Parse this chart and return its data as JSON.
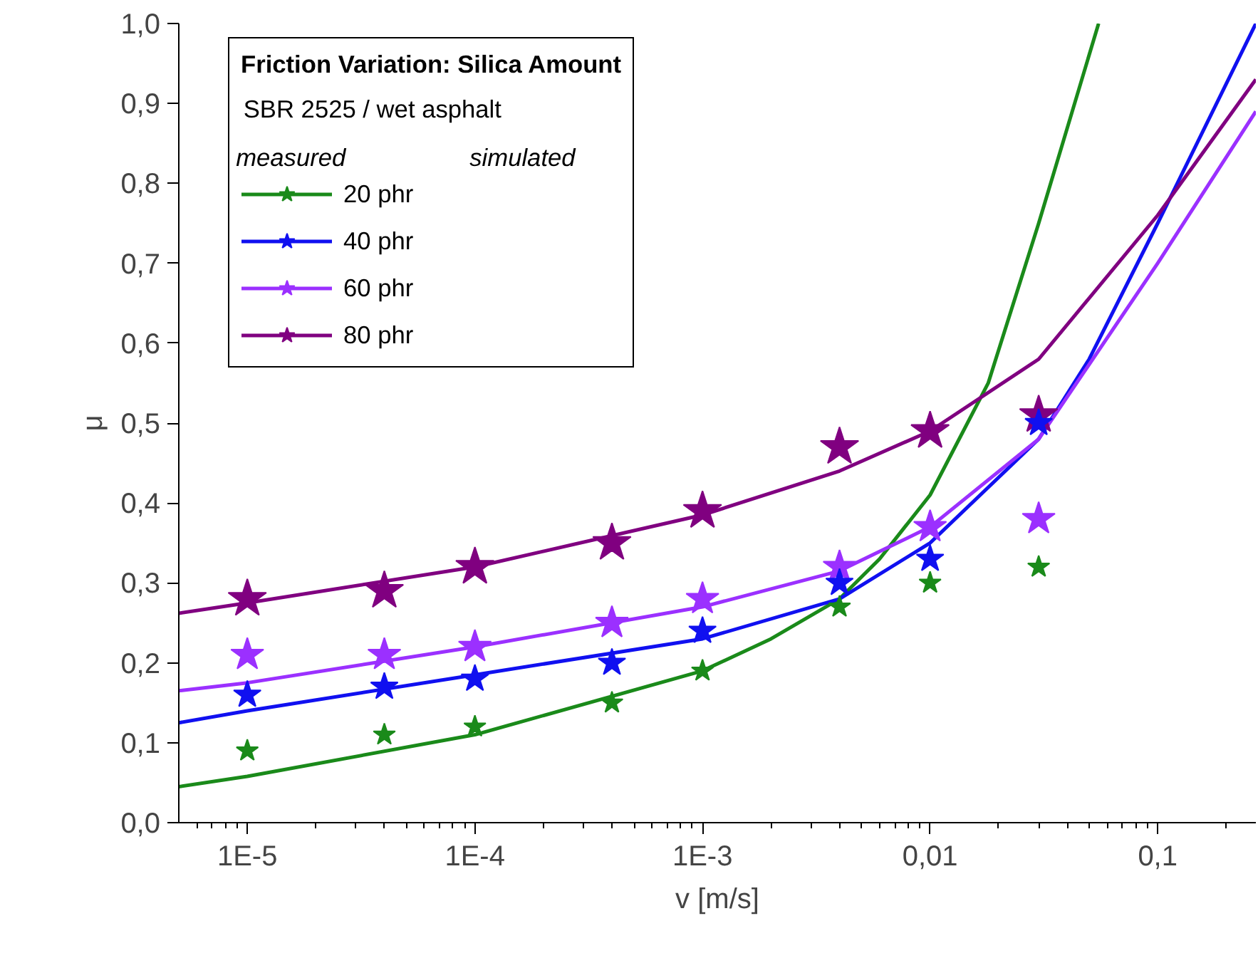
{
  "chart_data": {
    "type": "scatter",
    "legend_title": "Friction Variation: Silica Amount",
    "annotations": [
      "SBR 2525 / wet asphalt",
      "measured",
      "simulated"
    ],
    "xlabel": "v [m/s]",
    "ylabel": "μ",
    "log": "x",
    "grid": false,
    "legend": "top left",
    "marker": "star",
    "xlim": [
      5e-06,
      0.27
    ],
    "ylim": [
      0,
      1
    ],
    "xticks": [
      {
        "value": 1e-05,
        "label": "1E-5"
      },
      {
        "value": 0.0001,
        "label": "1E-4"
      },
      {
        "value": 0.001,
        "label": "1E-3"
      },
      {
        "value": 0.01,
        "label": "0,01"
      },
      {
        "value": 0.1,
        "label": "0,1"
      }
    ],
    "yticks": [
      {
        "value": 0,
        "label": "0,0"
      },
      {
        "value": 0.1,
        "label": "0,1"
      },
      {
        "value": 0.2,
        "label": "0,2"
      },
      {
        "value": 0.3,
        "label": "0,3"
      },
      {
        "value": 0.4,
        "label": "0,4"
      },
      {
        "value": 0.5,
        "label": "0,5"
      },
      {
        "value": 0.6,
        "label": "0,6"
      },
      {
        "value": 0.7,
        "label": "0,7"
      },
      {
        "value": 0.8,
        "label": "0,8"
      },
      {
        "value": 0.9,
        "label": "0,9"
      },
      {
        "value": 1,
        "label": "1,0"
      }
    ],
    "x": [
      1e-05,
      4e-05,
      0.0001,
      0.0004,
      0.001,
      0.004,
      0.01,
      0.03
    ],
    "series": [
      {
        "name": "20 phr",
        "color": "#1a8a1a",
        "values": [
          0.09,
          0.11,
          0.12,
          0.15,
          0.19,
          0.27,
          0.3,
          0.32
        ]
      },
      {
        "name": "40 phr",
        "color": "#1010f0",
        "values": [
          0.16,
          0.17,
          0.18,
          0.2,
          0.24,
          0.3,
          0.33,
          0.5
        ]
      },
      {
        "name": "60 phr",
        "color": "#9b30ff",
        "values": [
          0.21,
          0.21,
          0.22,
          0.25,
          0.28,
          0.32,
          0.37,
          0.38
        ]
      },
      {
        "name": "80 phr",
        "color": "#800080",
        "values": [
          0.28,
          0.29,
          0.32,
          0.35,
          0.39,
          0.47,
          0.49,
          0.51
        ]
      },
      {
        "type": "line",
        "marker": "none",
        "color": "#1a8a1a",
        "x": [
          5e-06,
          1e-05,
          0.0001,
          0.001,
          0.002,
          0.004,
          0.006,
          0.01,
          0.018,
          0.03,
          0.055
        ],
        "values": [
          0.045,
          0.058,
          0.11,
          0.19,
          0.23,
          0.28,
          0.33,
          0.41,
          0.55,
          0.75,
          1.0
        ]
      },
      {
        "type": "line",
        "marker": "none",
        "color": "#1010f0",
        "x": [
          5e-06,
          1e-05,
          0.0001,
          0.001,
          0.004,
          0.01,
          0.03,
          0.05,
          0.1,
          0.27
        ],
        "values": [
          0.125,
          0.14,
          0.185,
          0.23,
          0.28,
          0.35,
          0.48,
          0.58,
          0.75,
          1.0
        ]
      },
      {
        "type": "line",
        "marker": "none",
        "color": "#9b30ff",
        "x": [
          5e-06,
          1e-05,
          0.0001,
          0.001,
          0.004,
          0.01,
          0.03,
          0.1,
          0.27
        ],
        "values": [
          0.165,
          0.175,
          0.22,
          0.27,
          0.315,
          0.37,
          0.48,
          0.7,
          0.89
        ]
      },
      {
        "type": "line",
        "marker": "none",
        "color": "#800080",
        "x": [
          5e-06,
          1e-05,
          0.0001,
          0.001,
          0.004,
          0.01,
          0.03,
          0.1,
          0.27
        ],
        "values": [
          0.262,
          0.275,
          0.32,
          0.385,
          0.44,
          0.49,
          0.58,
          0.76,
          0.93
        ]
      }
    ]
  }
}
